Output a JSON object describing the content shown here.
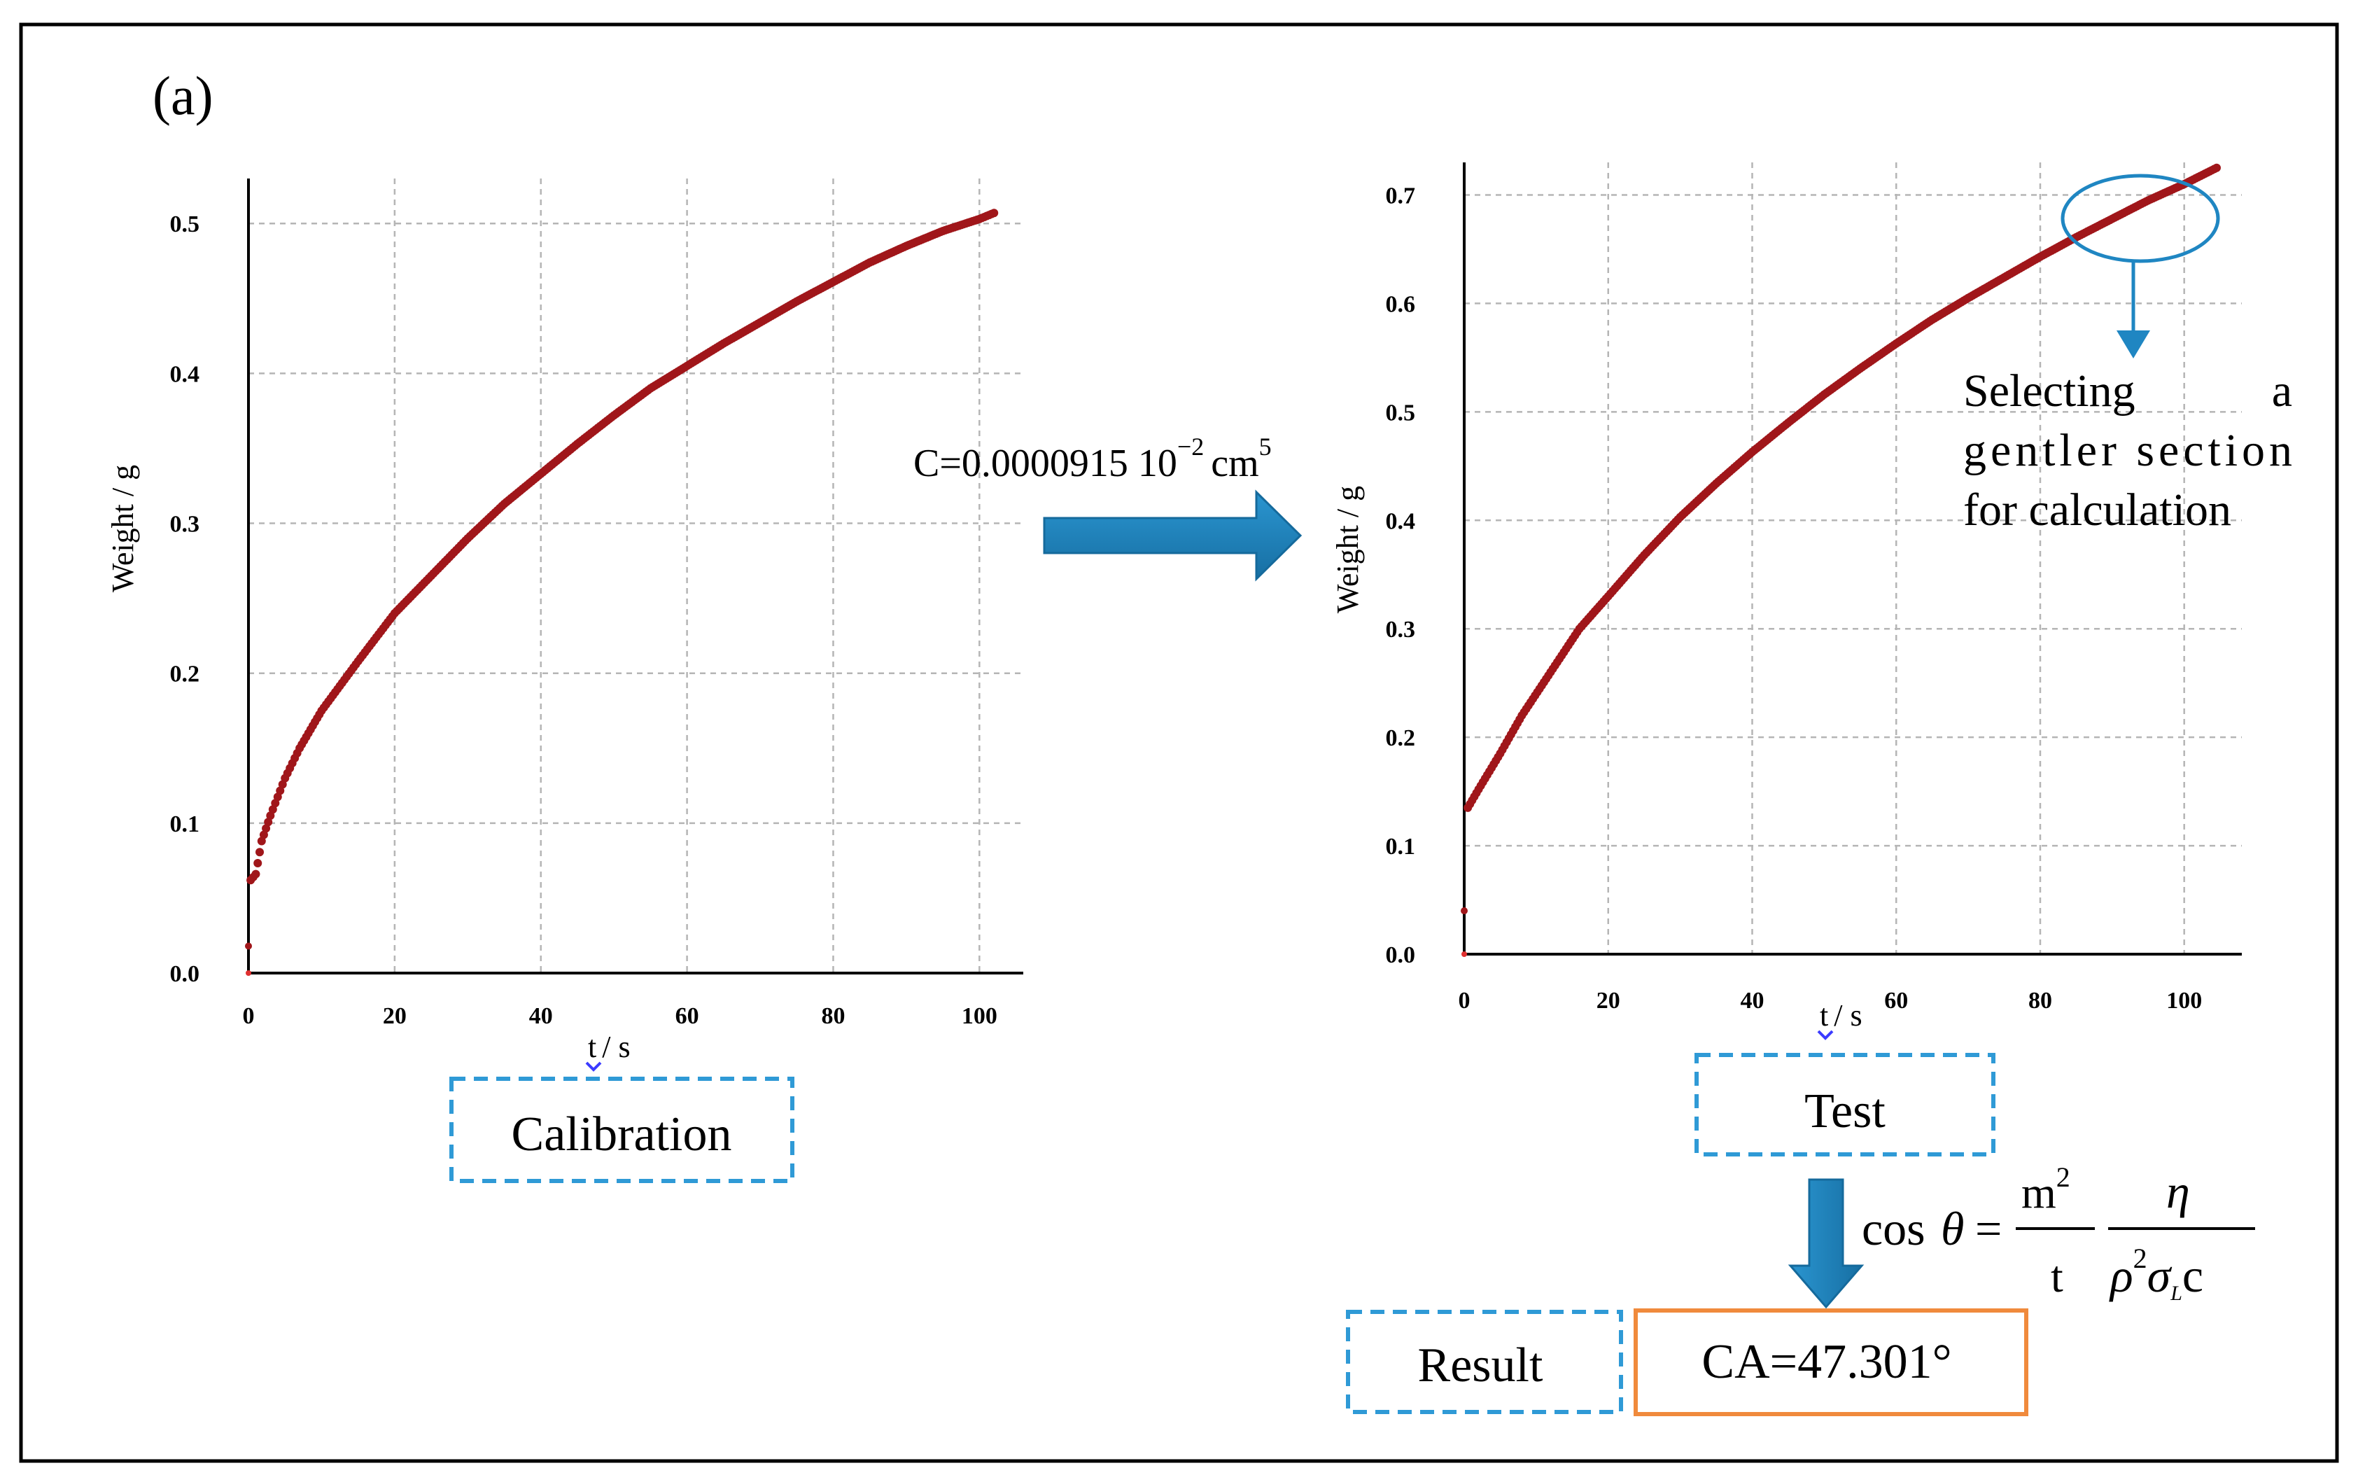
{
  "panel_label": "(a)",
  "constant_text": "C=0.0000915 10",
  "constant_exp": "−2",
  "constant_unit": "cm",
  "constant_unit_exp": "5",
  "annotation_lines": [
    "Selecting a",
    "gentler section",
    "for calculation"
  ],
  "calibration_label": "Calibration",
  "test_label": "Test",
  "result_label": "Result",
  "result_value": "CA=47.301°",
  "formula": {
    "lhs": "cos",
    "theta": "θ",
    "eq": "=",
    "frac1_num": "m",
    "frac1_num_exp": "2",
    "frac1_den": "t",
    "frac2_num": "η",
    "frac2_den_rho": "ρ",
    "frac2_den_rho_exp": "2",
    "frac2_den_sigma": "σ",
    "frac2_den_sigma_sub": "L",
    "frac2_den_c": "c"
  },
  "colors": {
    "series": "#a0161a",
    "arrow": "#1f86c2",
    "dashed_box": "#2f9ad6",
    "result_box": "#f08a3c"
  },
  "chart_data": [
    {
      "type": "scatter",
      "title": "Calibration",
      "xlabel_t": "t",
      "xlabel_unit": "/ s",
      "ylabel": "Weight / g",
      "xlim": [
        0,
        106
      ],
      "ylim": [
        0,
        0.53
      ],
      "xticks": [
        0,
        20,
        40,
        60,
        80,
        100
      ],
      "yticks": [
        0.0,
        0.1,
        0.2,
        0.3,
        0.4,
        0.5
      ],
      "xtick_labels": [
        "0",
        "20",
        "40",
        "60",
        "80",
        "100"
      ],
      "ytick_labels": [
        "0.0",
        "0.1",
        "0.2",
        "0.3",
        "0.4",
        "0.5"
      ],
      "grid": true,
      "series": [
        {
          "name": "weight",
          "x": [
            0,
            0.3,
            1,
            1.8,
            3,
            5,
            7,
            10,
            15,
            20,
            25,
            30,
            35,
            40,
            45,
            50,
            55,
            60,
            65,
            70,
            75,
            80,
            85,
            90,
            95,
            100,
            102
          ],
          "y": [
            0.018,
            0.062,
            0.066,
            0.088,
            0.105,
            0.13,
            0.15,
            0.175,
            0.208,
            0.24,
            0.265,
            0.29,
            0.313,
            0.333,
            0.353,
            0.372,
            0.39,
            0.405,
            0.42,
            0.434,
            0.448,
            0.461,
            0.474,
            0.485,
            0.495,
            0.503,
            0.507
          ]
        }
      ]
    },
    {
      "type": "scatter",
      "title": "Test",
      "xlabel_t": "t",
      "xlabel_unit": "/ s",
      "ylabel": "Weight / g",
      "xlim": [
        0,
        108
      ],
      "ylim": [
        0,
        0.73
      ],
      "xticks": [
        0,
        20,
        40,
        60,
        80,
        100
      ],
      "yticks": [
        0.0,
        0.1,
        0.2,
        0.3,
        0.4,
        0.5,
        0.6,
        0.7
      ],
      "xtick_labels": [
        "0",
        "20",
        "40",
        "60",
        "80",
        "100"
      ],
      "ytick_labels": [
        "0.0",
        "0.1",
        "0.2",
        "0.3",
        "0.4",
        "0.5",
        "0.6",
        "0.7"
      ],
      "grid": true,
      "series": [
        {
          "name": "weight",
          "x": [
            0,
            0.5,
            2,
            5,
            8,
            12,
            16,
            20,
            25,
            30,
            35,
            40,
            45,
            50,
            55,
            60,
            65,
            70,
            75,
            80,
            85,
            90,
            95,
            100,
            104.5
          ],
          "y": [
            0.04,
            0.135,
            0.152,
            0.185,
            0.22,
            0.26,
            0.3,
            0.33,
            0.368,
            0.403,
            0.434,
            0.463,
            0.49,
            0.516,
            0.54,
            0.563,
            0.585,
            0.605,
            0.624,
            0.643,
            0.661,
            0.678,
            0.695,
            0.71,
            0.725
          ]
        }
      ]
    }
  ]
}
